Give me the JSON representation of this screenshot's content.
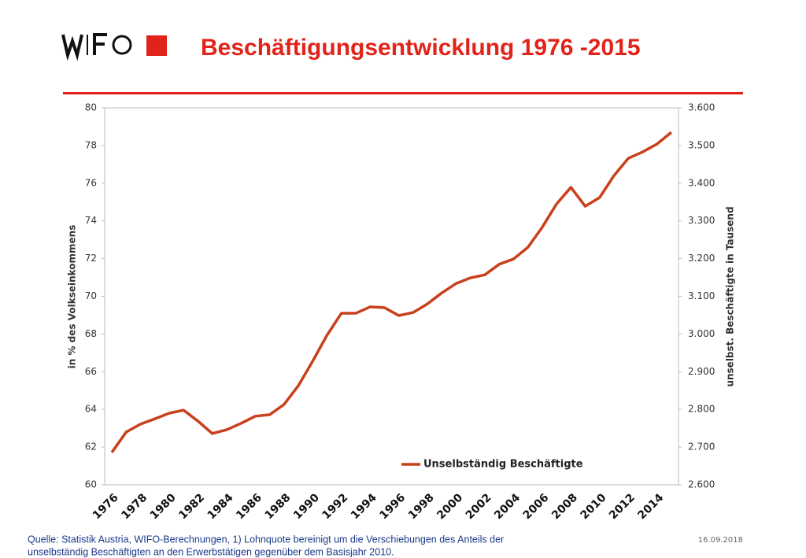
{
  "chart_data": {
    "type": "line",
    "title": "Beschäftigungsentwicklung 1976 -2015",
    "categories": [
      "1976",
      null,
      "1978",
      null,
      "1980",
      null,
      "1982",
      null,
      "1984",
      null,
      "1986",
      null,
      "1988",
      null,
      "1990",
      null,
      "1992",
      null,
      "1994",
      null,
      "1996",
      null,
      "1998",
      null,
      "2000",
      null,
      "2002",
      null,
      "2004",
      null,
      "2006",
      null,
      "2008",
      null,
      "2010",
      null,
      "2012",
      null,
      "2014",
      null
    ],
    "series": [
      {
        "name": "Unselbständig Beschäftigte",
        "color": "#c8401c",
        "axis": "y2",
        "values": [
          2686,
          2740,
          2761,
          2775,
          2790,
          2798,
          2769,
          2736,
          2746,
          2763,
          2782,
          2786,
          2813,
          2863,
          2928,
          2997,
          3055,
          3055,
          3072,
          3070,
          3049,
          3057,
          3080,
          3109,
          3134,
          3149,
          3157,
          3185,
          3199,
          3230,
          3283,
          3345,
          3389,
          3339,
          3362,
          3420,
          3466,
          3483,
          3504,
          3535
        ]
      }
    ],
    "ylabel": "in % des Volkseinkommens",
    "y2label": "unselbst. Beschäftigte in Tausend",
    "ylim": [
      60,
      80
    ],
    "yticks": [
      60,
      62,
      64,
      66,
      68,
      70,
      72,
      74,
      76,
      78,
      80
    ],
    "y2lim": [
      2600,
      3600
    ],
    "y2ticks": [
      {
        "value": 2600,
        "label": "2.600"
      },
      {
        "value": 2700,
        "label": "2.700"
      },
      {
        "value": 2800,
        "label": "2.800"
      },
      {
        "value": 2900,
        "label": "2.900"
      },
      {
        "value": 3000,
        "label": "3.000"
      },
      {
        "value": 3100,
        "label": "3.100"
      },
      {
        "value": 3200,
        "label": "3.200"
      },
      {
        "value": 3300,
        "label": "3.300"
      },
      {
        "value": 3400,
        "label": "3.400"
      },
      {
        "value": 3500,
        "label": "3.500"
      },
      {
        "value": 3600,
        "label": "3.600"
      }
    ],
    "grid": false,
    "legend": "bottom",
    "source": [
      "Quelle: Statistik Austria, WIFO-Berechnungen, 1) Lohnquote bereinigt um die Verschiebungen des Anteils der",
      "unselbständig Beschäftigten an den Erwerbstätigen gegenüber dem Basisjahr 2010."
    ],
    "date": "16.09.2018"
  }
}
